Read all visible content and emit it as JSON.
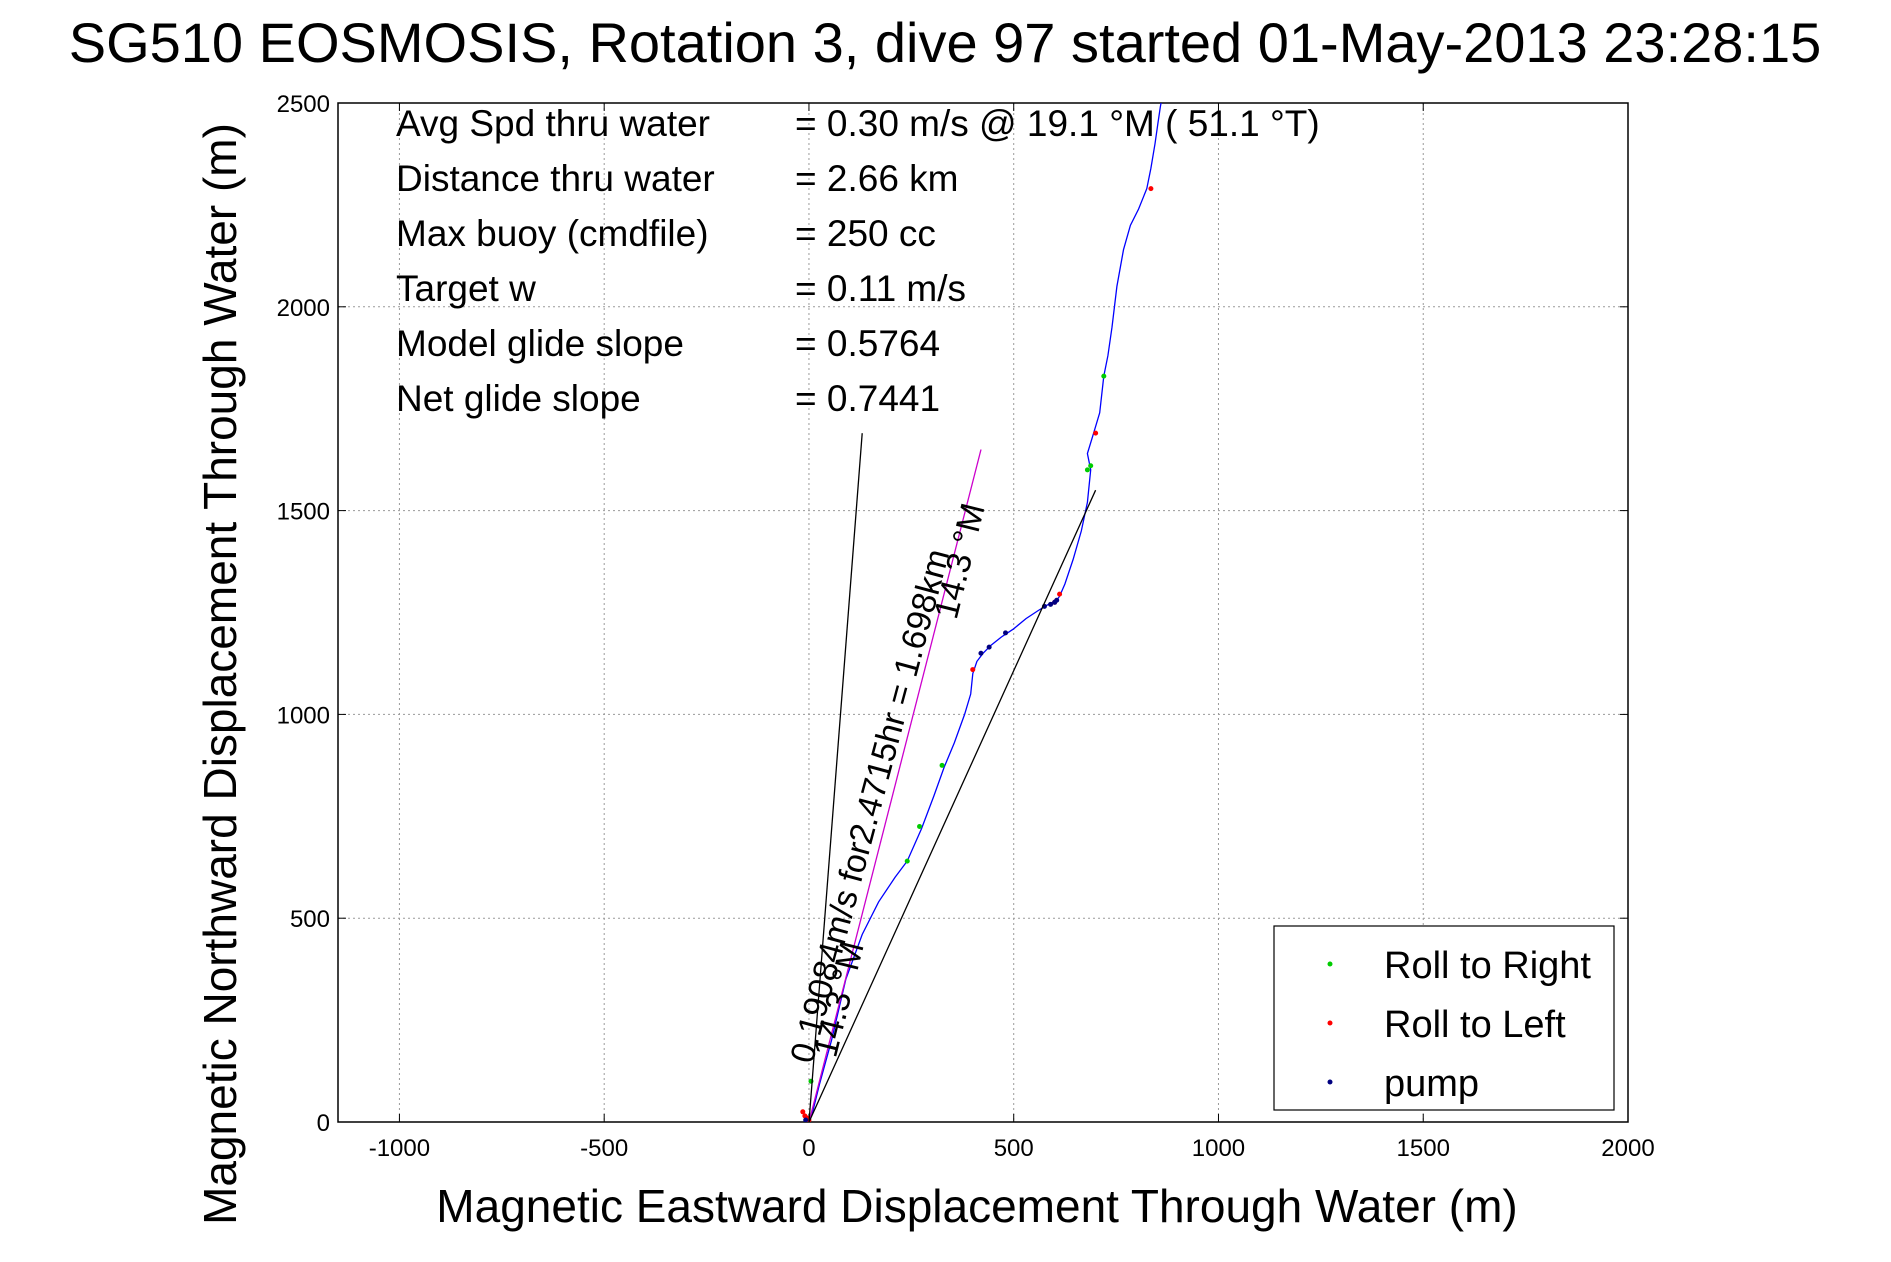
{
  "chart_data": {
    "type": "line",
    "title": "SG510 EOSMOSIS, Rotation 3, dive 97 started 01-May-2013 23:28:15",
    "xlabel": "Magnetic Eastward Displacement Through Water (m)",
    "ylabel": "Magnetic Northward Displacement Through Water (m)",
    "xlim": [
      -1150,
      2000
    ],
    "ylim": [
      0,
      2500
    ],
    "x_ticks": [
      -1000,
      -500,
      0,
      500,
      1000,
      1500,
      2000
    ],
    "y_ticks": [
      0,
      500,
      1000,
      1500,
      2000,
      2500
    ],
    "x_tick_labels": [
      "-1000",
      "-500",
      "0",
      "500",
      "1000",
      "1500",
      "2000"
    ],
    "y_tick_labels": [
      "0",
      "500",
      "1000",
      "1500",
      "2000",
      "2500"
    ],
    "grid": true,
    "legend_position": "bottom-right",
    "info_lines": [
      {
        "label": "Avg Spd thru water",
        "value": "=  0.30 m/s @  19.1 °M ( 51.1 °T)"
      },
      {
        "label": "Distance thru water",
        "value": "=  2.66 km"
      },
      {
        "label": "Max buoy (cmdfile)",
        "value": "= 250 cc"
      },
      {
        "label": "Target w",
        "value": "= 0.11 m/s"
      },
      {
        "label": "Model glide slope",
        "value": "= 0.5764"
      },
      {
        "label": "Net glide slope",
        "value": "= 0.7441"
      }
    ],
    "annotations": [
      {
        "text": "0.19084m/s for2.4715hr = 1.698km",
        "x": 8,
        "y": 140,
        "rotation_deg": -75
      },
      {
        "text": "14.3 °M",
        "x": 360,
        "y": 1230,
        "rotation_deg": -76
      },
      {
        "text": "14.3 °M",
        "x": 65,
        "y": 155,
        "rotation_deg": -76
      }
    ],
    "series": [
      {
        "name": "track",
        "color": "#0000ff",
        "x": [
          0,
          8,
          25,
          55,
          90,
          130,
          170,
          210,
          240,
          275,
          305,
          330,
          355,
          380,
          395,
          400,
          410,
          425,
          445,
          470,
          500,
          530,
          560,
          585,
          605,
          612,
          625,
          645,
          665,
          680,
          688,
          680,
          695,
          710,
          720,
          730,
          740,
          752,
          768,
          785,
          805,
          825,
          835,
          845,
          852,
          858,
          865
        ],
        "y": [
          0,
          20,
          90,
          200,
          350,
          460,
          540,
          600,
          640,
          720,
          800,
          870,
          930,
          1000,
          1050,
          1100,
          1130,
          1150,
          1170,
          1190,
          1210,
          1235,
          1255,
          1270,
          1280,
          1290,
          1320,
          1380,
          1450,
          1520,
          1600,
          1640,
          1690,
          1740,
          1830,
          1880,
          1950,
          2050,
          2140,
          2200,
          2240,
          2290,
          2340,
          2400,
          2450,
          2490,
          2530
        ]
      },
      {
        "name": "Roll to Right",
        "color": "#00cc00",
        "marker": "point",
        "x": [
          5,
          240,
          270,
          325,
          680,
          688,
          720
        ],
        "y": [
          100,
          640,
          725,
          875,
          1600,
          1610,
          1830
        ]
      },
      {
        "name": "Roll to Left",
        "color": "#ff0000",
        "marker": "point",
        "x": [
          -15,
          -10,
          -5,
          0,
          400,
          600,
          612,
          700,
          835
        ],
        "y": [
          25,
          15,
          10,
          5,
          1110,
          1275,
          1295,
          1690,
          2290
        ]
      },
      {
        "name": "pump",
        "color": "#000080",
        "marker": "point",
        "x": [
          -8,
          420,
          440,
          480,
          575,
          590,
          600,
          605
        ],
        "y": [
          5,
          1150,
          1165,
          1200,
          1265,
          1270,
          1275,
          1280
        ]
      },
      {
        "name": "",
        "color": "#cc00cc",
        "x": [
          0,
          420
        ],
        "y": [
          0,
          1650
        ]
      },
      {
        "name": "",
        "color": "#000000",
        "x": [
          0,
          130
        ],
        "y": [
          0,
          1690
        ]
      },
      {
        "name": "",
        "color": "#000000",
        "x": [
          0,
          700
        ],
        "y": [
          0,
          1550
        ]
      }
    ]
  }
}
